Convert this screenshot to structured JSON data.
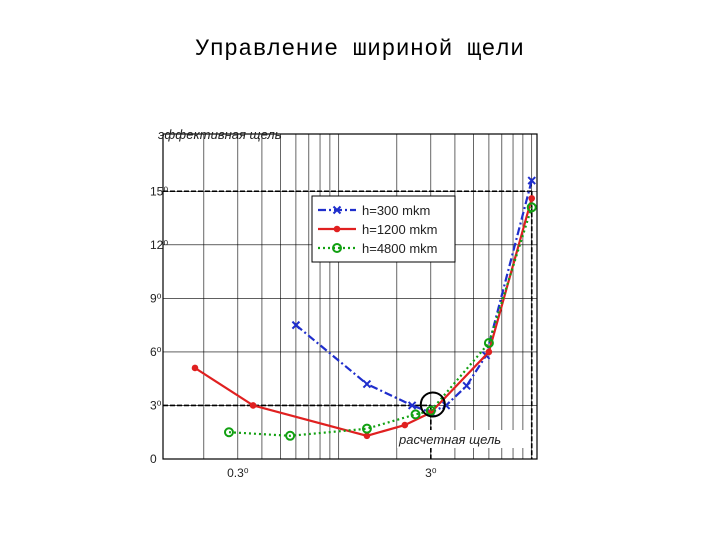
{
  "title": "Управление шириной щели",
  "chart_data": {
    "type": "line",
    "title": "Управление шириной щели",
    "ylabel": "эффективная щель",
    "xlabel": "",
    "x_scale": "log",
    "xlim": [
      0.03,
      12
    ],
    "ylim": [
      0,
      20
    ],
    "x_ticks": [
      {
        "value": 0.3,
        "label": "0.3⁰"
      },
      {
        "value": 3,
        "label": "3⁰"
      }
    ],
    "y_ticks": [
      {
        "value": 0,
        "label": "0"
      },
      {
        "value": 3,
        "label": "3⁰"
      },
      {
        "value": 6,
        "label": "6⁰"
      },
      {
        "value": 9,
        "label": "9⁰"
      },
      {
        "value": 12,
        "label": "12⁰"
      },
      {
        "value": 15,
        "label": "15⁰"
      }
    ],
    "grid": true,
    "legend_position": "top-right",
    "series": [
      {
        "name": "h=300 mkm",
        "color": "#1f2ecc",
        "dash": "dashdot",
        "marker": "x",
        "x": [
          0.6,
          1.4,
          2.4,
          3.0,
          3.6,
          4.6,
          5.8,
          10.0
        ],
        "y": [
          7.5,
          4.2,
          3.0,
          2.6,
          3.0,
          4.1,
          5.8,
          15.6
        ]
      },
      {
        "name": "h=1200 mkm",
        "color": "#e02020",
        "dash": "solid",
        "marker": "dot",
        "x": [
          0.18,
          0.36,
          1.4,
          2.2,
          3.0,
          6.0,
          10.0
        ],
        "y": [
          5.1,
          3.0,
          1.3,
          1.9,
          2.6,
          6.0,
          14.6
        ]
      },
      {
        "name": "h=4800 mkm",
        "color": "#12a012",
        "dash": "dotted",
        "marker": "circle",
        "x": [
          0.27,
          0.56,
          1.4,
          2.5,
          3.0,
          6.0,
          10.0
        ],
        "y": [
          1.5,
          1.3,
          1.7,
          2.5,
          2.7,
          6.5,
          14.1
        ]
      }
    ],
    "reference_lines": [
      {
        "axis": "y",
        "value": 15
      },
      {
        "axis": "y",
        "value": 3
      },
      {
        "axis": "x",
        "value": 3
      },
      {
        "axis": "x",
        "value": 10
      }
    ],
    "annotations": [
      {
        "text": "расчетная щель",
        "x": 3.0,
        "y": 3.0
      }
    ]
  }
}
